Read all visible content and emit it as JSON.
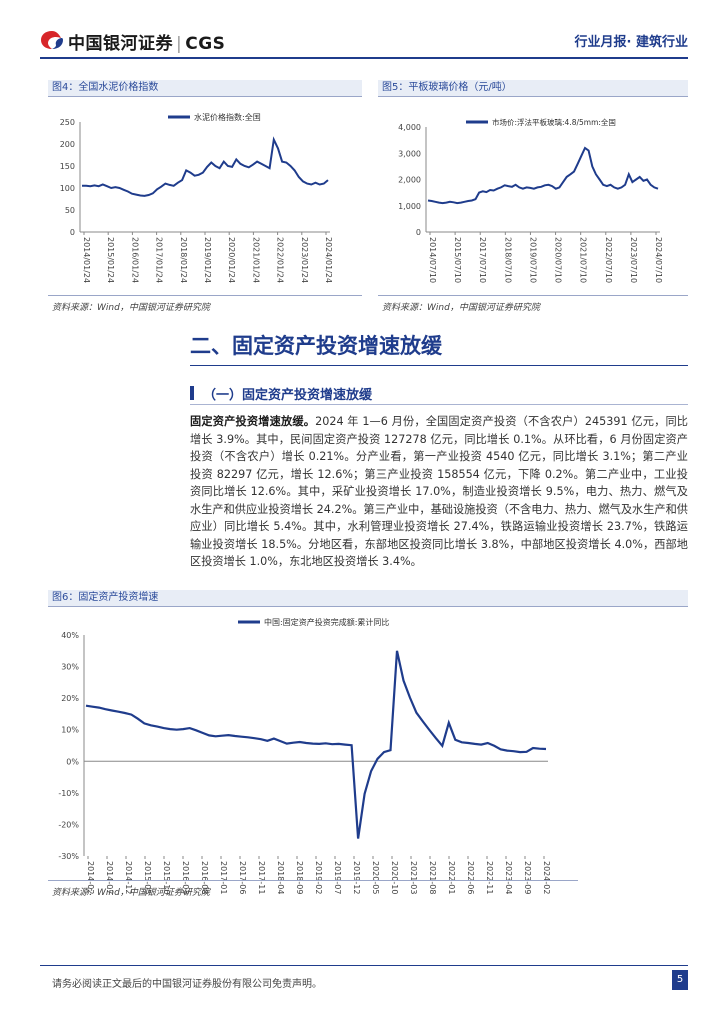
{
  "header": {
    "brand": "中国银河证券",
    "brand_en": "CGS",
    "separator": "|",
    "report_type": "行业月报· 建筑行业"
  },
  "figure4": {
    "caption": "图4：全国水泥价格指数",
    "source": "资料来源：Wind，中国银河证券研究院",
    "chart_data": {
      "type": "line",
      "title": "",
      "series": [
        {
          "name": "水泥价格指数:全国",
          "color": "#1f3c8c",
          "values": [
            105,
            105,
            104,
            106,
            104,
            108,
            104,
            100,
            102,
            100,
            96,
            92,
            87,
            85,
            83,
            82,
            84,
            88,
            97,
            103,
            110,
            107,
            105,
            112,
            118,
            140,
            135,
            128,
            130,
            135,
            148,
            158,
            150,
            145,
            160,
            150,
            148,
            165,
            155,
            150,
            147,
            153,
            160,
            155,
            150,
            145,
            210,
            190,
            160,
            158,
            150,
            140,
            125,
            115,
            110,
            108,
            112,
            108,
            110,
            118
          ]
        }
      ],
      "x_ticks": [
        "2014/01/24",
        "2015/01/24",
        "2016/01/24",
        "2017/01/24",
        "2018/01/24",
        "2019/01/24",
        "2020/01/24",
        "2021/01/24",
        "2022/01/24",
        "2023/01/24",
        "2024/01/24"
      ],
      "y_ticks": [
        "250",
        "200",
        "150",
        "100",
        "50",
        "0"
      ],
      "ylim": [
        0,
        250
      ]
    }
  },
  "figure5": {
    "caption": "图5：平板玻璃价格（元/吨）",
    "source": "资料来源：Wind，中国银河证券研究院",
    "chart_data": {
      "type": "line",
      "title": "",
      "series": [
        {
          "name": "市场价:浮法平板玻璃:4.8/5mm:全国",
          "color": "#1f3c8c",
          "values": [
            1200,
            1180,
            1150,
            1120,
            1100,
            1120,
            1150,
            1130,
            1100,
            1120,
            1150,
            1180,
            1200,
            1250,
            1500,
            1550,
            1520,
            1600,
            1580,
            1650,
            1700,
            1780,
            1750,
            1720,
            1800,
            1700,
            1650,
            1700,
            1680,
            1650,
            1700,
            1720,
            1780,
            1800,
            1750,
            1650,
            1700,
            1900,
            2100,
            2200,
            2300,
            2600,
            2900,
            3200,
            3100,
            2500,
            2200,
            2000,
            1800,
            1750,
            1800,
            1700,
            1650,
            1700,
            1800,
            2200,
            1900,
            2000,
            2100,
            1950,
            2000,
            1800,
            1700,
            1650
          ]
        }
      ],
      "x_ticks": [
        "2014/07/10",
        "2015/07/10",
        "2017/07/10",
        "2018/07/10",
        "2019/07/10",
        "2020/07/10",
        "2021/07/10",
        "2022/07/10",
        "2023/07/10",
        "2024/07/10"
      ],
      "y_ticks": [
        "4,000",
        "3,000",
        "2,000",
        "1,000",
        "0"
      ],
      "ylim": [
        0,
        4000
      ]
    }
  },
  "section": {
    "title": "二、固定资产投资增速放缓",
    "subtitle": "（一）固定资产投资增速放缓",
    "lead": "固定资产投资增速放缓。",
    "body": "2024 年 1—6 月份，全国固定资产投资（不含农户）245391 亿元，同比增长 3.9%。其中，民间固定资产投资 127278 亿元，同比增长 0.1%。从环比看，6 月份固定资产投资（不含农户）增长 0.21%。分产业看，第一产业投资 4540 亿元，同比增长 3.1%；第二产业投资 82297 亿元，增长 12.6%；第三产业投资 158554 亿元，下降 0.2%。第二产业中，工业投资同比增长 12.6%。其中，采矿业投资增长 17.0%，制造业投资增长 9.5%，电力、热力、燃气及水生产和供应业投资增长 24.2%。第三产业中，基础设施投资（不含电力、热力、燃气及水生产和供应业）同比增长 5.4%。其中，水利管理业投资增长 27.4%，铁路运输业投资增长 23.7%，铁路运输业投资增长 18.5%。分地区看，东部地区投资同比增长 3.8%，中部地区投资增长 4.0%，西部地区投资增长 1.0%，东北地区投资增长 3.4%。"
  },
  "figure6": {
    "caption": "图6：固定资产投资增速",
    "source": "资料来源：Wind，中国银河证券研究院",
    "chart_data": {
      "type": "line",
      "title": "",
      "series": [
        {
          "name": "中国:固定资产投资完成额:累计同比",
          "color": "#1f3c8c",
          "values": [
            17.6,
            17.3,
            17.0,
            16.5,
            16.1,
            15.7,
            15.3,
            14.8,
            13.5,
            12.0,
            11.4,
            11.0,
            10.5,
            10.2,
            10.0,
            10.2,
            10.5,
            9.8,
            9.0,
            8.2,
            7.9,
            8.1,
            8.3,
            8.0,
            7.8,
            7.6,
            7.3,
            7.0,
            6.5,
            7.2,
            6.4,
            5.6,
            5.9,
            6.1,
            5.8,
            5.6,
            5.5,
            5.7,
            5.4,
            5.5,
            5.3,
            5.1,
            -24.5,
            -10.3,
            -3.1,
            0.8,
            2.9,
            3.5,
            35.0,
            25.6,
            20.2,
            15.4,
            12.6,
            9.9,
            7.3,
            4.9,
            12.2,
            6.8,
            6.0,
            5.8,
            5.5,
            5.3,
            5.8,
            4.9,
            3.8,
            3.4,
            3.2,
            2.9,
            3.0,
            4.2,
            4.0,
            3.9
          ]
        }
      ],
      "x_ticks": [
        "2014-02",
        "2014-07",
        "2014-12",
        "2015-05",
        "2015-10",
        "2016-03",
        "2016-08",
        "2017-01",
        "2017-06",
        "2017-11",
        "2018-04",
        "2018-09",
        "2019-02",
        "2019-07",
        "2019-12",
        "2020-05",
        "2020-10",
        "2021-03",
        "2021-08",
        "2022-01",
        "2022-06",
        "2022-11",
        "2023-04",
        "2023-09",
        "2024-02"
      ],
      "y_ticks": [
        "40%",
        "30%",
        "20%",
        "10%",
        "0%",
        "-10%",
        "-20%",
        "-30%"
      ],
      "ylim": [
        -30,
        40
      ]
    }
  },
  "footer": {
    "disclaimer": "请务必阅读正文最后的中国银河证券股份有限公司免责声明。",
    "page": "5"
  }
}
